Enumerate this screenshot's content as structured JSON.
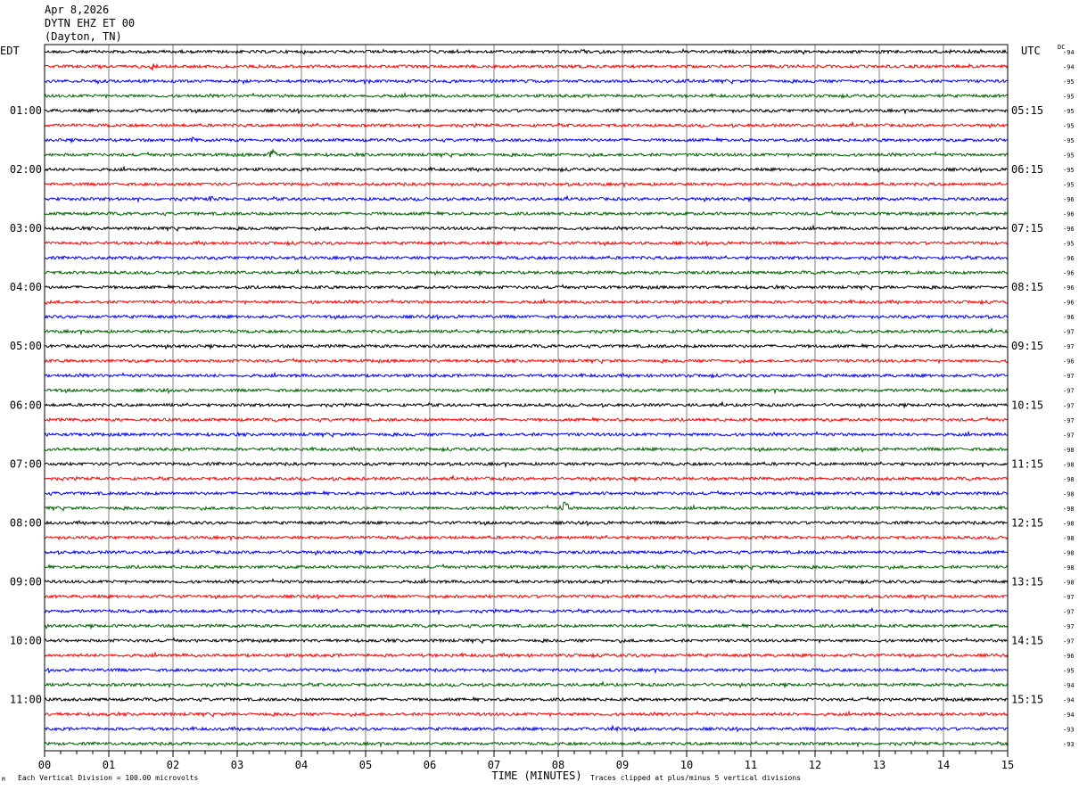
{
  "header": {
    "date": "Apr 8,2026",
    "station": "DYTN EHZ ET 00",
    "location": "(Dayton, TN)"
  },
  "footer": {
    "scale_note": "Each Vertical Division =  100.00 microvolts",
    "clip_note": "Traces clipped at plus/minus 5 vertical divisions",
    "corner_mark": "M"
  },
  "colors": {
    "trace_cycle": [
      "#000000",
      "#ff0000",
      "#0000ff",
      "#006400"
    ],
    "grid": "#808080",
    "frame": "#000000"
  },
  "chart_data": {
    "type": "line",
    "description_of_marks": "helicorder seismogram: 48 traces of 15 minutes each, 4 per hour",
    "left_timezone_label": "EDT",
    "right_timezone_label": "UTC",
    "dc_header": "DC",
    "xlabel": "TIME (MINUTES)",
    "xlim": [
      0,
      15
    ],
    "x_ticks": [
      "00",
      "01",
      "02",
      "03",
      "04",
      "05",
      "06",
      "07",
      "08",
      "09",
      "10",
      "11",
      "12",
      "13",
      "14",
      "15"
    ],
    "rows": 48,
    "left_hour_labels": [
      "01:00",
      "02:00",
      "03:00",
      "04:00",
      "05:00",
      "06:00",
      "07:00",
      "08:00",
      "09:00",
      "10:00",
      "11:00"
    ],
    "left_hour_rows": [
      4,
      8,
      12,
      16,
      20,
      24,
      28,
      32,
      36,
      40,
      44
    ],
    "right_hour_labels": [
      "05:15",
      "06:15",
      "07:15",
      "08:15",
      "09:15",
      "10:15",
      "11:15",
      "12:15",
      "13:15",
      "14:15",
      "15:15"
    ],
    "right_hour_rows": [
      4,
      8,
      12,
      16,
      20,
      24,
      28,
      32,
      36,
      40,
      44
    ],
    "dc_offsets": [
      "-94",
      "-94",
      "-95",
      "-95",
      "-95",
      "-95",
      "-95",
      "-95",
      "-95",
      "-95",
      "-96",
      "-96",
      "-96",
      "-95",
      "-96",
      "-96",
      "-96",
      "-96",
      "-96",
      "-97",
      "-97",
      "-96",
      "-97",
      "-97",
      "-97",
      "-97",
      "-97",
      "-98",
      "-98",
      "-98",
      "-98",
      "-98",
      "-98",
      "-98",
      "-98",
      "-98",
      "-98",
      "-97",
      "-97",
      "-97",
      "-97",
      "-96",
      "-95",
      "-94",
      "-94",
      "-94",
      "-93",
      "-93"
    ],
    "events": [
      {
        "row": 1,
        "minute": 1.7,
        "size": 4
      },
      {
        "row": 6,
        "minute": 2.3,
        "size": 3
      },
      {
        "row": 7,
        "minute": 3.55,
        "size": 9
      },
      {
        "row": 10,
        "minute": 2.6,
        "size": 4
      },
      {
        "row": 31,
        "minute": 8.1,
        "size": 10
      },
      {
        "row": 46,
        "minute": 8.9,
        "size": 5
      }
    ]
  }
}
